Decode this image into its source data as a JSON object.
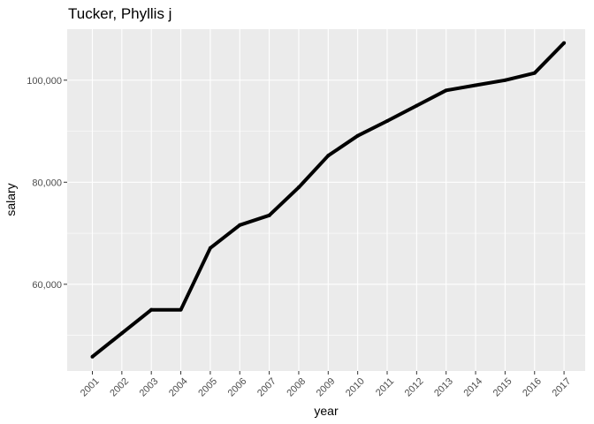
{
  "chart_data": {
    "type": "line",
    "title": "Tucker, Phyllis j",
    "xlabel": "year",
    "ylabel": "salary",
    "x": [
      "2001",
      "2002",
      "2003",
      "2004",
      "2005",
      "2006",
      "2007",
      "2008",
      "2009",
      "2010",
      "2011",
      "2012",
      "2013",
      "2014",
      "2015",
      "2016",
      "2017"
    ],
    "series": [
      {
        "values": [
          45800,
          50400,
          55000,
          55000,
          67100,
          71600,
          73500,
          79000,
          85200,
          89100,
          92000,
          95000,
          98000,
          99000,
          100000,
          101400,
          107300
        ]
      }
    ],
    "ylim": [
      43000,
      110000
    ],
    "yticks": [
      60000,
      80000,
      100000
    ],
    "ytick_labels": [
      "60,000",
      "80,000",
      "100,000"
    ],
    "grid": true,
    "line_color": "#000000",
    "panel_color": "#ebebeb",
    "grid_color": "#ffffff"
  }
}
